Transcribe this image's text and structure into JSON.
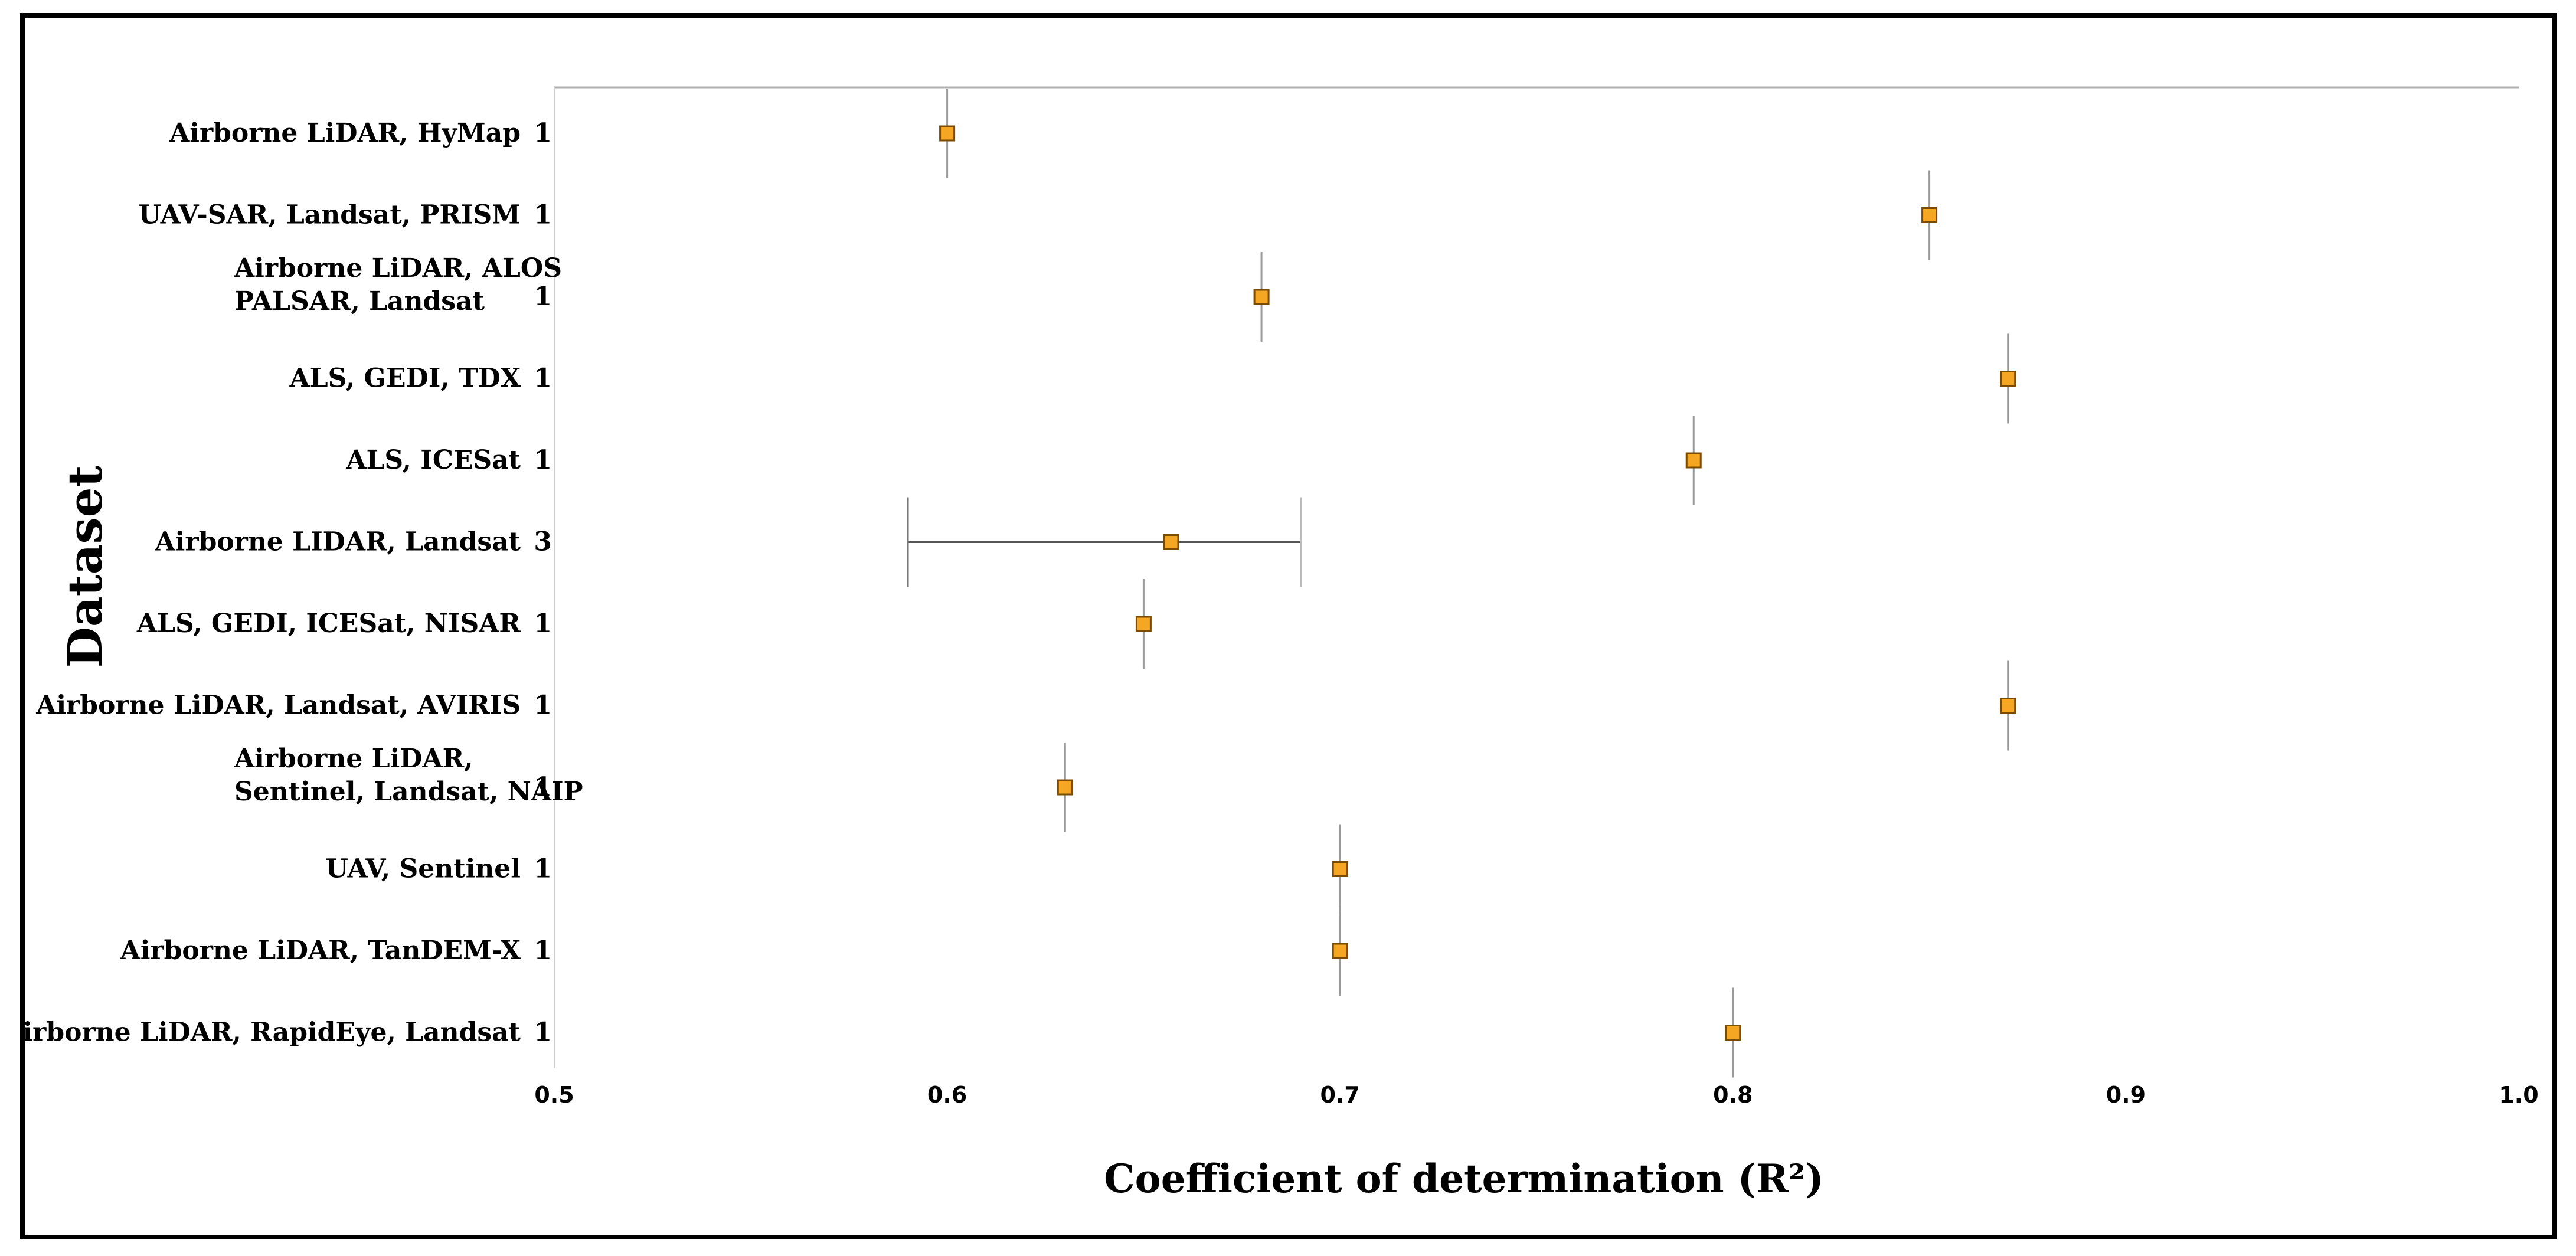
{
  "chart_data": {
    "type": "scatter",
    "xlabel": "Coefficient of determination (R²)",
    "ylabel": "Dataset",
    "xlim": [
      0.5,
      1.0
    ],
    "xticks": [
      "0.5",
      "0.6",
      "0.7",
      "0.8",
      "0.9",
      "1.0"
    ],
    "grid": false,
    "marker_color": "#f5a623",
    "marker_edge_color": "#7a4b00",
    "errorbar_color": "#9a9a9a",
    "rows": [
      {
        "label": [
          "Airborne LiDAR, HyMap"
        ],
        "n": "1",
        "value": 0.6,
        "low": 0.6,
        "high": 0.6
      },
      {
        "label": [
          "UAV-SAR, Landsat, PRISM"
        ],
        "n": "1",
        "value": 0.85,
        "low": 0.85,
        "high": 0.85
      },
      {
        "label": [
          "Airborne LiDAR, ALOS",
          "PALSAR, Landsat"
        ],
        "n": "1",
        "value": 0.68,
        "low": 0.68,
        "high": 0.68
      },
      {
        "label": [
          "ALS, GEDI, TDX"
        ],
        "n": "1",
        "value": 0.87,
        "low": 0.87,
        "high": 0.87
      },
      {
        "label": [
          "ALS, ICESat"
        ],
        "n": "1",
        "value": 0.79,
        "low": 0.79,
        "high": 0.79
      },
      {
        "label": [
          "Airborne LIDAR, Landsat"
        ],
        "n": "3",
        "value": 0.657,
        "low": 0.59,
        "high": 0.69
      },
      {
        "label": [
          "ALS, GEDI, ICESat, NISAR"
        ],
        "n": "1",
        "value": 0.65,
        "low": 0.65,
        "high": 0.65
      },
      {
        "label": [
          "Airborne LiDAR, Landsat, AVIRIS"
        ],
        "n": "1",
        "value": 0.87,
        "low": 0.87,
        "high": 0.87
      },
      {
        "label": [
          "Airborne LiDAR,",
          "Sentinel, Landsat, NAIP"
        ],
        "n": "1",
        "value": 0.63,
        "low": 0.63,
        "high": 0.63
      },
      {
        "label": [
          "UAV, Sentinel"
        ],
        "n": "1",
        "value": 0.7,
        "low": 0.7,
        "high": 0.7
      },
      {
        "label": [
          "Airborne LiDAR, TanDEM-X"
        ],
        "n": "1",
        "value": 0.7,
        "low": 0.7,
        "high": 0.7
      },
      {
        "label": [
          "Airborne LiDAR, RapidEye, Landsat"
        ],
        "n": "1",
        "value": 0.8,
        "low": 0.8,
        "high": 0.8
      }
    ]
  }
}
